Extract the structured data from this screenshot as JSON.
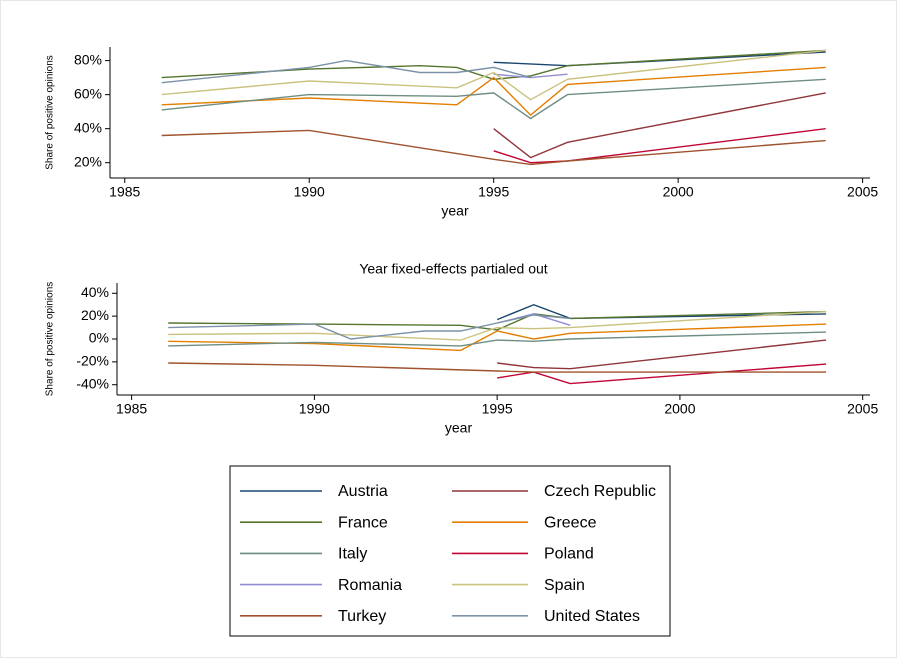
{
  "chart_data": [
    {
      "type": "line",
      "xlabel": "year",
      "ylabel": "Share of positive opinions",
      "xlim": [
        1984.6,
        2005.2
      ],
      "ylim": [
        11,
        88
      ],
      "xticks": [
        1985,
        1990,
        1995,
        2000,
        2005
      ],
      "yticks": [
        {
          "value": 20,
          "label": "20%"
        },
        {
          "value": 40,
          "label": "40%"
        },
        {
          "value": 60,
          "label": "60%"
        },
        {
          "value": 80,
          "label": "80%"
        }
      ],
      "series": [
        {
          "name": "Austria",
          "color": "#1a476f",
          "x": [
            1995,
            1997,
            2004
          ],
          "values": [
            79,
            77,
            85
          ]
        },
        {
          "name": "Czech Republic",
          "color": "#90353b",
          "x": [
            1995,
            1996,
            1997,
            2004
          ],
          "values": [
            40,
            23,
            32,
            61
          ]
        },
        {
          "name": "France",
          "color": "#55752f",
          "x": [
            1986,
            1990,
            1993,
            1994,
            1995,
            1996,
            1997,
            2004
          ],
          "values": [
            70,
            75,
            77,
            76,
            69,
            71,
            77,
            86
          ]
        },
        {
          "name": "Greece",
          "color": "#e37e00",
          "x": [
            1986,
            1990,
            1994,
            1995,
            1996,
            1997,
            2004
          ],
          "values": [
            54,
            58,
            54,
            70,
            48,
            66,
            76
          ]
        },
        {
          "name": "Italy",
          "color": "#6e8e84",
          "x": [
            1986,
            1990,
            1994,
            1995,
            1996,
            1997,
            2004
          ],
          "values": [
            51,
            60,
            59,
            61,
            46,
            60,
            69
          ]
        },
        {
          "name": "Poland",
          "color": "#c10534",
          "x": [
            1995,
            1996,
            1997,
            2004
          ],
          "values": [
            27,
            20,
            21,
            40
          ]
        },
        {
          "name": "Romania",
          "color": "#938dd2",
          "x": [
            1995,
            1996,
            1997
          ],
          "values": [
            72,
            70,
            72
          ]
        },
        {
          "name": "Spain",
          "color": "#cac27e",
          "x": [
            1986,
            1990,
            1994,
            1995,
            1996,
            1997,
            2004
          ],
          "values": [
            60,
            68,
            64,
            73,
            57,
            69,
            86
          ]
        },
        {
          "name": "Turkey",
          "color": "#a0522d",
          "x": [
            1986,
            1990,
            1995,
            1996,
            1997,
            2004
          ],
          "values": [
            36,
            39,
            22,
            19,
            21,
            33
          ]
        },
        {
          "name": "United States",
          "color": "#7b92a8",
          "x": [
            1986,
            1990,
            1991,
            1993,
            1994,
            1995,
            1996
          ],
          "values": [
            67,
            76,
            80,
            73,
            73,
            76,
            70
          ]
        }
      ]
    },
    {
      "type": "line",
      "title": "Year fixed-effects partialed out",
      "xlabel": "year",
      "ylabel": "Share of positive opinions",
      "xlim": [
        1984.6,
        2005.2
      ],
      "ylim": [
        -49,
        49
      ],
      "xticks": [
        1985,
        1990,
        1995,
        2000,
        2005
      ],
      "yticks": [
        {
          "value": -40,
          "label": "-40%"
        },
        {
          "value": -20,
          "label": "-20%"
        },
        {
          "value": 0,
          "label": "0%"
        },
        {
          "value": 20,
          "label": "20%"
        },
        {
          "value": 40,
          "label": "40%"
        }
      ],
      "series": [
        {
          "color": "#1a476f",
          "x": [
            1995,
            1996,
            1997,
            2004
          ],
          "values": [
            17,
            30,
            18,
            22
          ]
        },
        {
          "color": "#90353b",
          "x": [
            1995,
            1996,
            1997,
            2004
          ],
          "values": [
            -21,
            -25,
            -26,
            -1
          ]
        },
        {
          "color": "#55752f",
          "x": [
            1986,
            1990,
            1994,
            1995,
            1996,
            1997,
            2004
          ],
          "values": [
            14,
            13,
            12,
            8,
            22,
            18,
            24
          ]
        },
        {
          "color": "#e37e00",
          "x": [
            1986,
            1990,
            1994,
            1995,
            1996,
            1997,
            2004
          ],
          "values": [
            -2,
            -4,
            -10,
            7,
            0,
            5,
            13
          ]
        },
        {
          "color": "#6e8e84",
          "x": [
            1986,
            1990,
            1994,
            1995,
            1996,
            1997,
            2004
          ],
          "values": [
            -6,
            -3,
            -6,
            -1,
            -2,
            0,
            6
          ]
        },
        {
          "color": "#c10534",
          "x": [
            1995,
            1996,
            1997,
            2004
          ],
          "values": [
            -34,
            -29,
            -39,
            -22
          ]
        },
        {
          "color": "#938dd2",
          "x": [
            1995,
            1996,
            1997
          ],
          "values": [
            14,
            22,
            12
          ]
        },
        {
          "color": "#cac27e",
          "x": [
            1986,
            1990,
            1994,
            1995,
            1996,
            1997,
            2004
          ],
          "values": [
            4,
            5,
            -1,
            10,
            9,
            10,
            24
          ]
        },
        {
          "color": "#a0522d",
          "x": [
            1986,
            1990,
            1995,
            1996,
            1997,
            2004
          ],
          "values": [
            -21,
            -23,
            -28,
            -29,
            -29,
            -29
          ]
        },
        {
          "color": "#7b92a8",
          "x": [
            1986,
            1990,
            1991,
            1993,
            1994,
            1995,
            1996,
            1997
          ],
          "values": [
            10,
            13,
            0,
            7,
            7,
            14,
            21,
            18
          ]
        }
      ]
    }
  ]
}
